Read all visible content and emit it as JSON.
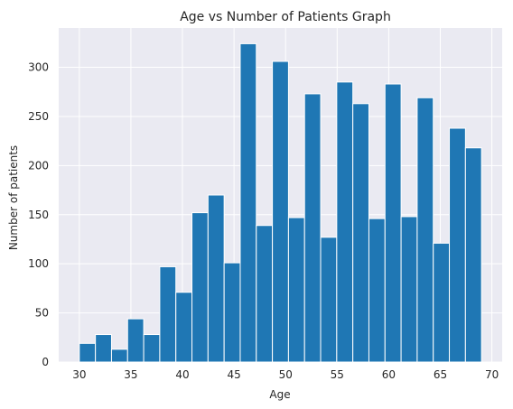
{
  "chart_data": {
    "type": "bar",
    "title": "Age vs Number of Patients Graph",
    "xlabel": "Age",
    "ylabel": "Number of patients",
    "xlim": [
      28,
      71
    ],
    "ylim": [
      0,
      340
    ],
    "xticks": [
      30,
      35,
      40,
      45,
      50,
      55,
      60,
      65,
      70
    ],
    "yticks": [
      0,
      50,
      100,
      150,
      200,
      250,
      300
    ],
    "grid": true,
    "bin_start": 30,
    "bin_end": 69,
    "bin_count": 25,
    "values": [
      19,
      28,
      13,
      44,
      28,
      97,
      71,
      152,
      170,
      101,
      324,
      139,
      306,
      147,
      273,
      127,
      285,
      263,
      146,
      283,
      148,
      269,
      121,
      238,
      218
    ],
    "bar_color": "#1f77b4",
    "background_color": "#eaeaf2"
  }
}
